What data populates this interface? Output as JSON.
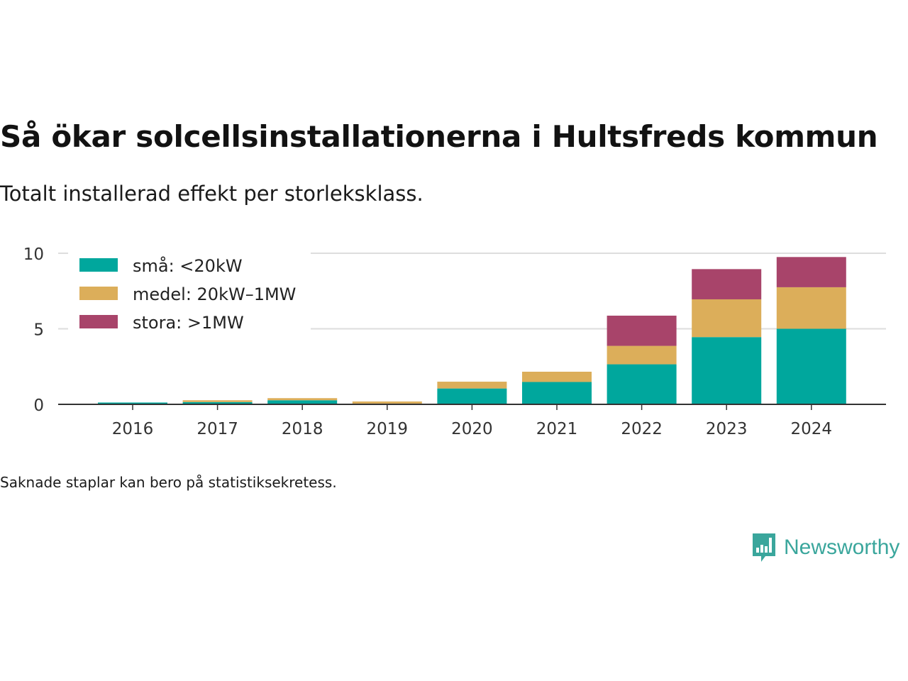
{
  "title": "Så ökar solcellsinstallationerna i Hultsfreds kommun",
  "subtitle": "Totalt installerad effekt per storleksklass.",
  "footnote": "Saknade staplar kan bero på statistiksekretess.",
  "brand": {
    "name": "Newsworthy",
    "icon": "newsworthy-logo-icon",
    "color": "#3aa69c"
  },
  "chart_data": {
    "type": "bar",
    "stacked": true,
    "categories": [
      "2016",
      "2017",
      "2018",
      "2019",
      "2020",
      "2021",
      "2022",
      "2023",
      "2024"
    ],
    "series": [
      {
        "name": "små: <20kW",
        "color": "#00a79d",
        "values": [
          0.12,
          0.15,
          0.27,
          0.05,
          1.05,
          1.48,
          2.65,
          4.45,
          5.0
        ]
      },
      {
        "name": "medel: 20kW–1MW",
        "color": "#dcae5a",
        "values": [
          0.0,
          0.12,
          0.14,
          0.14,
          0.45,
          0.68,
          1.22,
          2.5,
          2.75
        ]
      },
      {
        "name": "stora: >1MW",
        "color": "#a8446a",
        "values": [
          0.0,
          0.0,
          0.0,
          0.0,
          0.0,
          0.0,
          2.0,
          2.0,
          2.0
        ]
      }
    ],
    "ylim": [
      0,
      10
    ],
    "yticks": [
      0,
      5,
      10
    ],
    "grid": true,
    "legend_position": "top-left"
  }
}
